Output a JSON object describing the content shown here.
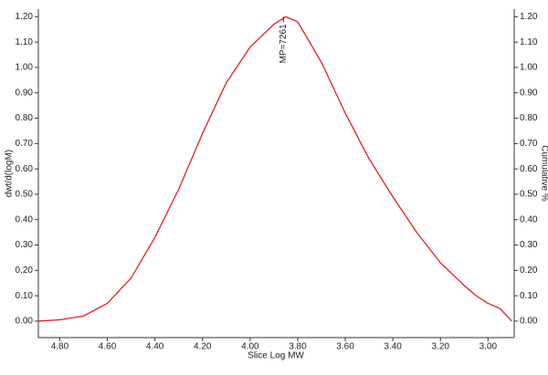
{
  "chart_data": {
    "type": "line",
    "xlabel": "Slice Log MW",
    "ylabel": "dwt/d(logM)",
    "y2label": "Cumulative %",
    "x": [
      4.89,
      4.8,
      4.7,
      4.6,
      4.5,
      4.4,
      4.3,
      4.2,
      4.1,
      4.0,
      3.9,
      3.85,
      3.8,
      3.7,
      3.6,
      3.5,
      3.4,
      3.3,
      3.2,
      3.1,
      3.05,
      3.0,
      2.95,
      2.9
    ],
    "series": [
      {
        "name": "dwt/d(logM)",
        "color": "#e02020",
        "values": [
          0.0,
          0.005,
          0.02,
          0.07,
          0.17,
          0.33,
          0.52,
          0.74,
          0.94,
          1.08,
          1.17,
          1.2,
          1.18,
          1.02,
          0.82,
          0.64,
          0.49,
          0.35,
          0.23,
          0.14,
          0.1,
          0.07,
          0.05,
          0.0
        ]
      }
    ],
    "annotations": [
      {
        "text": "MP=7261",
        "x": 3.86,
        "y": 1.2
      }
    ],
    "xlim": [
      4.89,
      2.89
    ],
    "xticks": [
      {
        "value": 4.8,
        "label": "4.80"
      },
      {
        "value": 4.6,
        "label": "4.60"
      },
      {
        "value": 4.4,
        "label": "4.40"
      },
      {
        "value": 4.2,
        "label": "4.20"
      },
      {
        "value": 4.0,
        "label": "4.00"
      },
      {
        "value": 3.8,
        "label": "3.80"
      },
      {
        "value": 3.6,
        "label": "3.60"
      },
      {
        "value": 3.4,
        "label": "3.40"
      },
      {
        "value": 3.2,
        "label": "3.20"
      },
      {
        "value": 3.0,
        "label": "3.00"
      }
    ],
    "ylim": [
      -0.065,
      1.23
    ],
    "yticks": [
      {
        "value": 0,
        "label": "0.00"
      },
      {
        "value": 0.1,
        "label": "0.10"
      },
      {
        "value": 0.2,
        "label": "0.20"
      },
      {
        "value": 0.3,
        "label": "0.30"
      },
      {
        "value": 0.4,
        "label": "0.40"
      },
      {
        "value": 0.5,
        "label": "0.50"
      },
      {
        "value": 0.6,
        "label": "0.60"
      },
      {
        "value": 0.7,
        "label": "0.70"
      },
      {
        "value": 0.8,
        "label": "0.80"
      },
      {
        "value": 0.9,
        "label": "0.90"
      },
      {
        "value": 1.0,
        "label": "1.00"
      },
      {
        "value": 1.1,
        "label": "1.10"
      },
      {
        "value": 1.2,
        "label": "1.20"
      }
    ],
    "y2lim": [
      -0.065,
      1.23
    ],
    "y2ticks": [
      {
        "value": 0,
        "label": "0.00"
      },
      {
        "value": 0.1,
        "label": "0.10"
      },
      {
        "value": 0.2,
        "label": "0.20"
      },
      {
        "value": 0.3,
        "label": "0.30"
      },
      {
        "value": 0.4,
        "label": "0.40"
      },
      {
        "value": 0.5,
        "label": "0.50"
      },
      {
        "value": 0.6,
        "label": "0.60"
      },
      {
        "value": 0.7,
        "label": "0.70"
      },
      {
        "value": 0.8,
        "label": "0.80"
      },
      {
        "value": 0.9,
        "label": "0.90"
      },
      {
        "value": 1.0,
        "label": "1.00"
      },
      {
        "value": 1.1,
        "label": "1.10"
      },
      {
        "value": 1.2,
        "label": "1.20"
      }
    ],
    "grid": false
  }
}
